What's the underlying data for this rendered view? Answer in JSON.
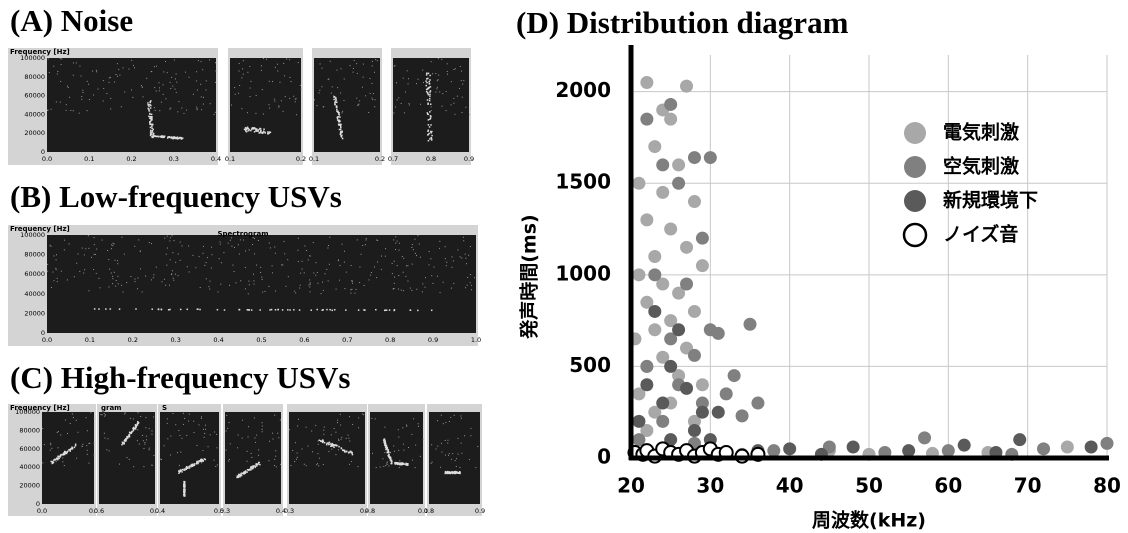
{
  "panels": [
    {
      "title": "(A) Noise",
      "header": "Frequency [Hz]",
      "yticks": [
        "100000",
        "80000",
        "60000",
        "40000",
        "20000",
        "0"
      ],
      "images": [
        {
          "xticks": [
            "0.0",
            "0.1",
            "0.2",
            "0.3",
            "0.4"
          ]
        },
        {
          "xticks": [
            "0.1",
            "0.2"
          ]
        },
        {
          "xticks": [
            "0.1",
            "0.2"
          ]
        },
        {
          "xticks": [
            "0.7",
            "0.8",
            "0.9"
          ]
        }
      ]
    },
    {
      "title": "(B) Low-frequency USVs",
      "header": "Frequency [Hz]",
      "subheader": "Spectrogram",
      "yticks": [
        "100000",
        "80000",
        "60000",
        "40000",
        "20000",
        "0"
      ],
      "images": [
        {
          "xticks": [
            "0.0",
            "0.1",
            "0.2",
            "0.3",
            "0.4",
            "0.5",
            "0.6",
            "0.7",
            "0.8",
            "0.9",
            "1.0"
          ]
        }
      ]
    },
    {
      "title": "(C) High-frequency USVs",
      "header": "Frequency [Hz]",
      "yticks": [
        "100000",
        "80000",
        "60000",
        "40000",
        "20000",
        "0"
      ],
      "images": [
        {
          "xticks": [
            "0.0",
            "0.1"
          ]
        },
        {
          "header": "gram",
          "xticks": [
            "0.6",
            "0.7"
          ]
        },
        {
          "header": "S",
          "xticks": [
            "0.4",
            "0.5"
          ]
        },
        {
          "xticks": [
            "0.3",
            "0.4"
          ]
        },
        {
          "xticks": [
            "0.3",
            "0.4"
          ]
        },
        {
          "xticks": [
            "0.8",
            "0.1"
          ]
        },
        {
          "xticks": [
            "0.8",
            "0.9"
          ]
        }
      ]
    }
  ],
  "chart_data": {
    "type": "scatter",
    "title": "(D) Distribution diagram",
    "xlabel": "周波数(kHz)",
    "ylabel": "発声時間(ms)",
    "xlim": [
      20,
      80
    ],
    "ylim": [
      0,
      2200
    ],
    "xticks": [
      20,
      30,
      40,
      50,
      60,
      70,
      80
    ],
    "yticks": [
      0,
      500,
      1000,
      1500,
      2000
    ],
    "grid": true,
    "legend": "upper right",
    "series": [
      {
        "name": "電気刺激",
        "color": "#a8a8a8",
        "fill": true,
        "x": [
          22,
          27,
          24,
          25,
          23,
          26,
          21,
          24,
          28,
          22,
          25,
          27,
          23,
          29,
          21,
          24,
          26,
          22,
          28,
          25,
          23,
          20.5,
          27,
          24,
          22,
          26,
          29,
          21,
          25,
          23,
          28,
          22,
          65,
          75,
          50,
          45,
          58
        ],
        "values": [
          2050,
          2030,
          1900,
          1850,
          1700,
          1600,
          1500,
          1450,
          1400,
          1300,
          1250,
          1150,
          1100,
          1050,
          1000,
          950,
          900,
          850,
          800,
          750,
          700,
          650,
          600,
          550,
          500,
          450,
          400,
          350,
          300,
          250,
          200,
          150,
          30,
          60,
          20,
          40,
          25
        ]
      },
      {
        "name": "空気刺激",
        "color": "#808080",
        "fill": true,
        "x": [
          25,
          28,
          30,
          24,
          22,
          26,
          29,
          23,
          27,
          30,
          35,
          31,
          25,
          28,
          33,
          32,
          36,
          34,
          22,
          26,
          29,
          24,
          21,
          28,
          34,
          38,
          45,
          52,
          57,
          60,
          68,
          72,
          80
        ],
        "values": [
          1930,
          1640,
          1640,
          1600,
          1850,
          1500,
          1200,
          1000,
          950,
          700,
          730,
          680,
          650,
          560,
          450,
          350,
          300,
          230,
          500,
          400,
          300,
          200,
          100,
          80,
          20,
          40,
          60,
          30,
          110,
          40,
          20,
          50,
          80
        ]
      },
      {
        "name": "新規環境下",
        "color": "#5a5a5a",
        "fill": true,
        "x": [
          23,
          26,
          25,
          22,
          27,
          24,
          29,
          21,
          28,
          30,
          31,
          25,
          40,
          48,
          55,
          62,
          69,
          78,
          44,
          66,
          36
        ],
        "values": [
          800,
          700,
          500,
          400,
          380,
          300,
          250,
          200,
          150,
          100,
          250,
          100,
          50,
          60,
          40,
          70,
          100,
          60,
          20,
          30,
          40
        ]
      },
      {
        "name": "ノイズ音",
        "color": "#000000",
        "fill": false,
        "x": [
          20.5,
          21.5,
          22,
          23,
          24,
          25,
          26,
          27,
          28,
          29,
          30,
          31,
          32,
          34,
          36
        ],
        "values": [
          30,
          20,
          40,
          10,
          50,
          30,
          20,
          40,
          10,
          30,
          50,
          20,
          30,
          10,
          20
        ]
      }
    ]
  }
}
